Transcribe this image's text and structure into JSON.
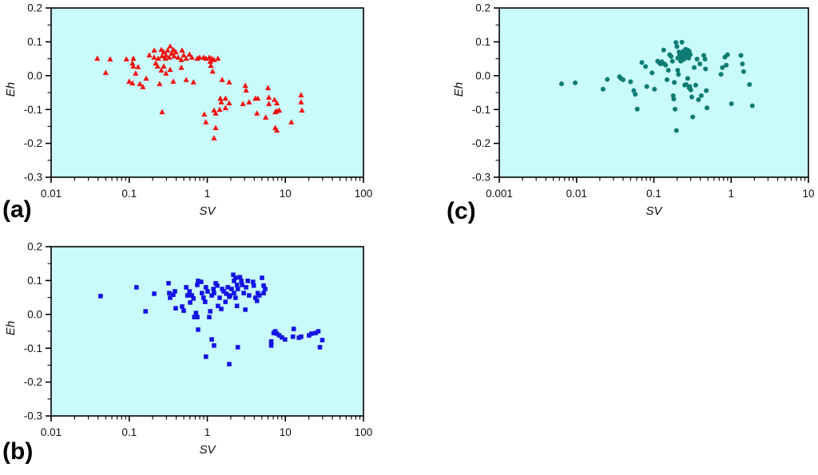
{
  "panels": [
    {
      "label": "(a)"
    },
    {
      "label": "(b)"
    },
    {
      "label": "(c)"
    }
  ],
  "colors": {
    "plot_background": "#cafbfb",
    "axis": "#000000",
    "series_a": "#ee1111",
    "series_b": "#1414e6",
    "series_c": "#0e7c74"
  },
  "chart_data": [
    {
      "id": "a",
      "type": "scatter",
      "marker": "triangle",
      "color": "#ee1111",
      "plot_bg": "#cafbfb",
      "xlabel": "SV",
      "ylabel": "Eh",
      "x_scale": "log",
      "xlim": [
        0.01,
        100
      ],
      "ylim": [
        -0.3,
        0.2
      ],
      "x_ticks": [
        "0.01",
        "0.1",
        "1",
        "10",
        "100"
      ],
      "y_ticks": [
        "0.2",
        "0.1",
        "0.0",
        "-0.1",
        "-0.2",
        "-0.3"
      ],
      "grid": false,
      "legend": false,
      "points": [
        [
          0.039,
          0.051
        ],
        [
          0.057,
          0.049
        ],
        [
          0.05,
          0.009
        ],
        [
          0.092,
          0.049
        ],
        [
          0.113,
          0.051
        ],
        [
          0.11,
          0.037
        ],
        [
          0.113,
          0.028
        ],
        [
          0.1,
          -0.017
        ],
        [
          0.11,
          -0.022
        ],
        [
          0.121,
          0.007
        ],
        [
          0.13,
          0.026
        ],
        [
          0.137,
          -0.024
        ],
        [
          0.15,
          -0.033
        ],
        [
          0.165,
          -0.008
        ],
        [
          0.181,
          0.061
        ],
        [
          0.209,
          0.075
        ],
        [
          0.219,
          0.037
        ],
        [
          0.231,
          0.028
        ],
        [
          0.209,
          0.054
        ],
        [
          0.236,
          0.051
        ],
        [
          0.258,
          0.077
        ],
        [
          0.264,
          0.058
        ],
        [
          0.277,
          0.07
        ],
        [
          0.29,
          0.051
        ],
        [
          0.296,
          0.061
        ],
        [
          0.311,
          0.075
        ],
        [
          0.326,
          0.054
        ],
        [
          0.334,
          0.087
        ],
        [
          0.35,
          0.066
        ],
        [
          0.367,
          0.077
        ],
        [
          0.376,
          0.058
        ],
        [
          0.394,
          0.07
        ],
        [
          0.423,
          0.054
        ],
        [
          0.465,
          0.047
        ],
        [
          0.476,
          0.075
        ],
        [
          0.499,
          0.061
        ],
        [
          0.537,
          0.051
        ],
        [
          0.592,
          0.063
        ],
        [
          0.634,
          0.054
        ],
        [
          0.258,
          0.016
        ],
        [
          0.277,
          0.028
        ],
        [
          0.296,
          0.007
        ],
        [
          0.334,
          0.018
        ],
        [
          0.245,
          -0.024
        ],
        [
          0.367,
          -0.017
        ],
        [
          0.465,
          0.024
        ],
        [
          0.537,
          -0.012
        ],
        [
          0.665,
          -0.019
        ],
        [
          0.744,
          0.051
        ],
        [
          0.797,
          0.054
        ],
        [
          0.895,
          0.054
        ],
        [
          0.96,
          0.051
        ],
        [
          1.06,
          0.054
        ],
        [
          1.09,
          0.042
        ],
        [
          1.14,
          0.051
        ],
        [
          1.22,
          0.047
        ],
        [
          1.37,
          0.051
        ],
        [
          1.51,
          -0.078
        ],
        [
          1.44,
          -0.1
        ],
        [
          0.264,
          -0.107
        ],
        [
          1.11,
          0.03
        ],
        [
          1.17,
          0.013
        ],
        [
          1.55,
          -0.012
        ],
        [
          1.91,
          -0.019
        ],
        [
          3.07,
          -0.029
        ],
        [
          3.14,
          -0.043
        ],
        [
          6.0,
          -0.036
        ],
        [
          6.15,
          -0.064
        ],
        [
          1.47,
          -0.067
        ],
        [
          1.71,
          -0.067
        ],
        [
          1.91,
          -0.081
        ],
        [
          2.86,
          -0.083
        ],
        [
          3.43,
          -0.078
        ],
        [
          4.13,
          -0.067
        ],
        [
          4.43,
          -0.067
        ],
        [
          6.15,
          -0.083
        ],
        [
          7.25,
          -0.071
        ],
        [
          7.78,
          -0.081
        ],
        [
          1.71,
          -0.095
        ],
        [
          0.916,
          -0.114
        ],
        [
          1.22,
          -0.102
        ],
        [
          1.28,
          -0.111
        ],
        [
          4.33,
          -0.111
        ],
        [
          5.59,
          -0.123
        ],
        [
          7.42,
          -0.107
        ],
        [
          7.78,
          -0.104
        ],
        [
          8.34,
          -0.102
        ],
        [
          15.9,
          -0.057
        ],
        [
          15.9,
          -0.078
        ],
        [
          16.3,
          -0.102
        ],
        [
          11.9,
          -0.137
        ],
        [
          0.96,
          -0.137
        ],
        [
          1.28,
          -0.154
        ],
        [
          7.42,
          -0.154
        ],
        [
          7.78,
          -0.161
        ],
        [
          1.22,
          -0.184
        ]
      ]
    },
    {
      "id": "b",
      "type": "scatter",
      "marker": "square",
      "color": "#1414e6",
      "plot_bg": "#cafbfb",
      "xlabel": "SV",
      "ylabel": "Eh",
      "x_scale": "log",
      "xlim": [
        0.01,
        100
      ],
      "ylim": [
        -0.3,
        0.2
      ],
      "x_ticks": [
        "0.01",
        "0.1",
        "1",
        "10",
        "100"
      ],
      "y_ticks": [
        "0.2",
        "0.1",
        "0.0",
        "-0.1",
        "-0.2",
        "-0.3"
      ],
      "grid": false,
      "legend": false,
      "points": [
        [
          0.043,
          0.054
        ],
        [
          0.124,
          0.08
        ],
        [
          0.162,
          0.009
        ],
        [
          0.209,
          0.061
        ],
        [
          0.319,
          0.092
        ],
        [
          0.326,
          0.063
        ],
        [
          0.334,
          0.049
        ],
        [
          0.367,
          0.058
        ],
        [
          0.385,
          0.068
        ],
        [
          0.394,
          0.018
        ],
        [
          0.476,
          0.023
        ],
        [
          0.499,
          0.011
        ],
        [
          0.537,
          0.08
        ],
        [
          0.557,
          0.056
        ],
        [
          0.592,
          0.068
        ],
        [
          0.603,
          0.035
        ],
        [
          0.634,
          0.056
        ],
        [
          0.665,
          0.047
        ],
        [
          0.682,
          -0.008
        ],
        [
          0.717,
          0.004
        ],
        [
          0.744,
          -0.008
        ],
        [
          0.762,
          0.099
        ],
        [
          0.744,
          0.087
        ],
        [
          0.833,
          0.096
        ],
        [
          0.854,
          0.063
        ],
        [
          0.895,
          0.049
        ],
        [
          0.938,
          0.037
        ],
        [
          0.96,
          0.08
        ],
        [
          1.01,
          0.068
        ],
        [
          1.06,
          -0.008
        ],
        [
          1.09,
          0.009
        ],
        [
          1.14,
          0.056
        ],
        [
          1.2,
          0.075
        ],
        [
          1.22,
          0.063
        ],
        [
          1.28,
          0.092
        ],
        [
          1.34,
          0.085
        ],
        [
          1.37,
          0.025
        ],
        [
          1.44,
          0.049
        ],
        [
          1.51,
          0.016
        ],
        [
          1.55,
          0.075
        ],
        [
          1.62,
          0.068
        ],
        [
          1.71,
          0.037
        ],
        [
          1.75,
          0.061
        ],
        [
          1.83,
          0.08
        ],
        [
          1.91,
          0.052
        ],
        [
          1.96,
          0.056
        ],
        [
          2.05,
          0.075
        ],
        [
          2.15,
          0.117
        ],
        [
          2.2,
          0.099
        ],
        [
          2.3,
          0.108
        ],
        [
          2.4,
          0.087
        ],
        [
          2.46,
          0.075
        ],
        [
          2.2,
          0.063
        ],
        [
          2.3,
          0.049
        ],
        [
          2.4,
          0.025
        ],
        [
          2.62,
          0.11
        ],
        [
          2.73,
          0.099
        ],
        [
          2.79,
          0.087
        ],
        [
          2.93,
          0.063
        ],
        [
          3.07,
          0.014
        ],
        [
          3.14,
          0.08
        ],
        [
          3.3,
          0.099
        ],
        [
          3.43,
          0.056
        ],
        [
          3.85,
          0.096
        ],
        [
          3.94,
          0.085
        ],
        [
          4.13,
          0.049
        ],
        [
          4.33,
          0.04
        ],
        [
          4.43,
          0.063
        ],
        [
          4.64,
          0.056
        ],
        [
          5.02,
          0.108
        ],
        [
          5.27,
          0.085
        ],
        [
          5.51,
          0.075
        ],
        [
          5.27,
          0.063
        ],
        [
          0.762,
          -0.045
        ],
        [
          1.14,
          -0.074
        ],
        [
          1.22,
          -0.092
        ],
        [
          0.96,
          -0.125
        ],
        [
          1.91,
          -0.147
        ],
        [
          2.46,
          -0.097
        ],
        [
          7.08,
          -0.055
        ],
        [
          7.42,
          -0.05
        ],
        [
          7.78,
          -0.057
        ],
        [
          8.34,
          -0.062
        ],
        [
          6.59,
          -0.08
        ],
        [
          6.59,
          -0.092
        ],
        [
          9.02,
          -0.068
        ],
        [
          9.9,
          -0.074
        ],
        [
          12.5,
          -0.066
        ],
        [
          12.8,
          -0.043
        ],
        [
          14.9,
          -0.069
        ],
        [
          15.9,
          -0.066
        ],
        [
          20.1,
          -0.062
        ],
        [
          21.6,
          -0.057
        ],
        [
          24.4,
          -0.055
        ],
        [
          26.4,
          -0.05
        ],
        [
          27.7,
          -0.097
        ],
        [
          29.7,
          -0.076
        ]
      ]
    },
    {
      "id": "c",
      "type": "scatter",
      "marker": "circle",
      "color": "#0e7c74",
      "plot_bg": "#cafbfb",
      "xlabel": "SV",
      "ylabel": "Eh",
      "x_scale": "log",
      "xlim": [
        0.001,
        10
      ],
      "ylim": [
        -0.3,
        0.2
      ],
      "x_ticks": [
        "0.001",
        "0.01",
        "0.1",
        "1",
        "10"
      ],
      "y_ticks": [
        "0.2",
        "0.1",
        "0.0",
        "-0.1",
        "-0.2",
        "-0.3"
      ],
      "grid": false,
      "legend": false,
      "points": [
        [
          0.0064,
          -0.024
        ],
        [
          0.0096,
          -0.021
        ],
        [
          0.022,
          -0.04
        ],
        [
          0.025,
          -0.011
        ],
        [
          0.036,
          -0.003
        ],
        [
          0.0375,
          -0.008
        ],
        [
          0.04,
          -0.012
        ],
        [
          0.05,
          -0.018
        ],
        [
          0.055,
          -0.044
        ],
        [
          0.0575,
          -0.055
        ],
        [
          0.061,
          -0.099
        ],
        [
          0.07,
          0.039
        ],
        [
          0.078,
          0.027
        ],
        [
          0.081,
          -0.032
        ],
        [
          0.095,
          0.008
        ],
        [
          0.102,
          -0.04
        ],
        [
          0.112,
          0.043
        ],
        [
          0.117,
          0.039
        ],
        [
          0.122,
          0.035
        ],
        [
          0.127,
          0.041
        ],
        [
          0.134,
          0.076
        ],
        [
          0.137,
          0.035
        ],
        [
          0.142,
          0.031
        ],
        [
          0.148,
          -0.012
        ],
        [
          0.154,
          0.016
        ],
        [
          0.16,
          0.062
        ],
        [
          0.167,
          0.057
        ],
        [
          0.174,
          0.043
        ],
        [
          0.178,
          -0.059
        ],
        [
          0.181,
          -0.069
        ],
        [
          0.184,
          -0.02
        ],
        [
          0.188,
          -0.099
        ],
        [
          0.193,
          0.098
        ],
        [
          0.196,
          -0.162
        ],
        [
          0.199,
          0.086
        ],
        [
          0.204,
          0.052
        ],
        [
          0.204,
          0.016
        ],
        [
          0.208,
          0.004
        ],
        [
          0.212,
          0.07
        ],
        [
          0.215,
          0.06
        ],
        [
          0.217,
          0.049
        ],
        [
          0.221,
          0.057
        ],
        [
          0.223,
          0.043
        ],
        [
          0.227,
          0.064
        ],
        [
          0.231,
          0.055
        ],
        [
          0.231,
          0.099
        ],
        [
          0.235,
          0.06
        ],
        [
          0.237,
          0.047
        ],
        [
          0.241,
          0.052
        ],
        [
          0.241,
          0.072
        ],
        [
          0.245,
          0.058
        ],
        [
          0.247,
          0.049
        ],
        [
          0.251,
          0.067
        ],
        [
          0.251,
          -0.028
        ],
        [
          0.255,
          0.055
        ],
        [
          0.258,
          0.078
        ],
        [
          0.262,
          0.062
        ],
        [
          0.262,
          -0.026
        ],
        [
          0.266,
          0.069
        ],
        [
          0.27,
          0.058
        ],
        [
          0.274,
          0.076
        ],
        [
          0.274,
          -0.008
        ],
        [
          0.278,
          0.064
        ],
        [
          0.282,
          0.052
        ],
        [
          0.287,
          0.072
        ],
        [
          0.287,
          -0.036
        ],
        [
          0.292,
          -0.032
        ],
        [
          0.296,
          0.062
        ],
        [
          0.301,
          -0.042
        ],
        [
          0.31,
          -0.063
        ],
        [
          0.319,
          -0.122
        ],
        [
          0.333,
          0.024
        ],
        [
          0.348,
          -0.028
        ],
        [
          0.362,
          0.049
        ],
        [
          0.378,
          -0.071
        ],
        [
          0.394,
          0.035
        ],
        [
          0.411,
          -0.059
        ],
        [
          0.443,
          0.06
        ],
        [
          0.459,
          0.049
        ],
        [
          0.466,
          0.02
        ],
        [
          0.477,
          -0.044
        ],
        [
          0.487,
          -0.095
        ],
        [
          0.74,
          0.004
        ],
        [
          0.77,
          0.024
        ],
        [
          0.831,
          0.055
        ],
        [
          0.864,
          0.031
        ],
        [
          0.898,
          0.062
        ],
        [
          1.01,
          -0.083
        ],
        [
          1.34,
          0.06
        ],
        [
          1.4,
          0.035
        ],
        [
          1.45,
          0.012
        ],
        [
          1.73,
          -0.026
        ],
        [
          1.88,
          -0.089
        ]
      ]
    }
  ]
}
